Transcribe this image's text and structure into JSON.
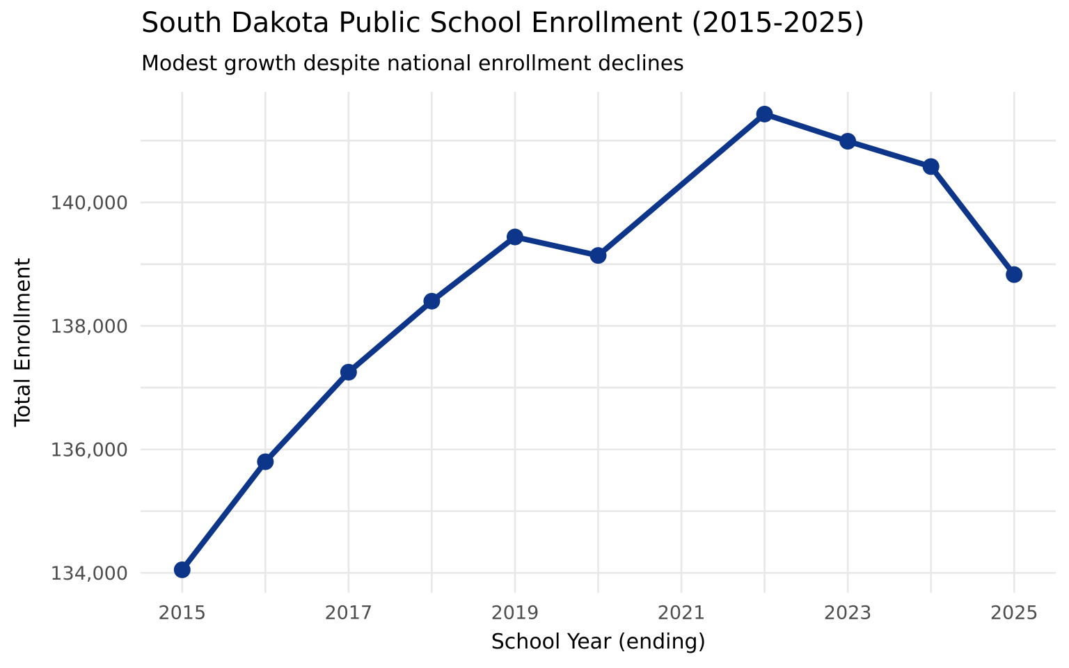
{
  "chart_data": {
    "type": "line",
    "title": "South Dakota Public School Enrollment (2015-2025)",
    "subtitle": "Modest growth despite national enrollment declines",
    "xlabel": "School Year (ending)",
    "ylabel": "Total Enrollment",
    "series": [
      {
        "name": "Total Enrollment",
        "x": [
          2015,
          2016,
          2017,
          2018,
          2019,
          2020,
          2022,
          2023,
          2024,
          2025
        ],
        "values": [
          134050,
          135800,
          137250,
          138400,
          139440,
          139140,
          141430,
          140990,
          140580,
          138830
        ]
      }
    ],
    "xlim": [
      2014.5,
      2025.5
    ],
    "ylim": [
      133680,
      141790
    ],
    "x_ticks": [
      {
        "value": 2015,
        "label": "2015"
      },
      {
        "value": 2017,
        "label": "2017"
      },
      {
        "value": 2019,
        "label": "2019"
      },
      {
        "value": 2021,
        "label": "2021"
      },
      {
        "value": 2023,
        "label": "2023"
      },
      {
        "value": 2025,
        "label": "2025"
      }
    ],
    "y_ticks": [
      {
        "value": 134000,
        "label": "134,000"
      },
      {
        "value": 136000,
        "label": "136,000"
      },
      {
        "value": 138000,
        "label": "138,000"
      },
      {
        "value": 140000,
        "label": "140,000"
      }
    ],
    "x_gridlines": [
      2015,
      2016,
      2017,
      2018,
      2019,
      2020,
      2021,
      2022,
      2023,
      2024,
      2025
    ],
    "y_gridlines": [
      134000,
      135000,
      136000,
      137000,
      138000,
      139000,
      140000,
      141000
    ],
    "grid": true,
    "legend": "none",
    "colors": {
      "line": "#0d3589",
      "marker": "#0d3589",
      "gridline": "#e8e8e8",
      "tick_label": "#4d4d4d",
      "title_text": "#000000",
      "background": "#ffffff"
    }
  }
}
